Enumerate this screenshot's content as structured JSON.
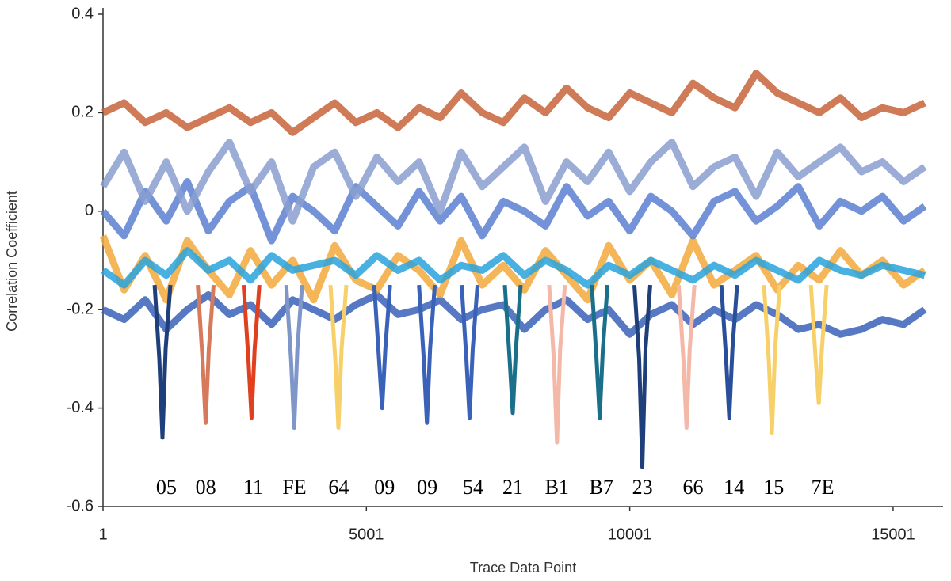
{
  "chart_data": {
    "type": "line",
    "x_label": "Trace Data Point",
    "y_label": "Correlation Coefficient",
    "xlim": [
      1,
      15950
    ],
    "xticks": [
      1,
      5001,
      10001,
      15001
    ],
    "ylim": [
      -0.6,
      0.4
    ],
    "yticks": [
      0.4,
      0.2,
      0,
      -0.2,
      -0.4,
      -0.6
    ],
    "grid": false,
    "x": [
      1,
      401,
      801,
      1201,
      1601,
      2001,
      2401,
      2801,
      3201,
      3601,
      4001,
      4401,
      4801,
      5201,
      5601,
      6001,
      6401,
      6801,
      7201,
      7601,
      8001,
      8401,
      8801,
      9201,
      9601,
      10001,
      10401,
      10801,
      11201,
      11601,
      12001,
      12401,
      12801,
      13201,
      13601,
      14001,
      14401,
      14801,
      15201,
      15601
    ],
    "series": [
      {
        "color": "#c8643a",
        "values": [
          0.2,
          0.22,
          0.18,
          0.2,
          0.17,
          0.19,
          0.21,
          0.18,
          0.2,
          0.16,
          0.19,
          0.22,
          0.18,
          0.2,
          0.17,
          0.21,
          0.19,
          0.24,
          0.2,
          0.18,
          0.23,
          0.2,
          0.25,
          0.21,
          0.19,
          0.24,
          0.22,
          0.2,
          0.26,
          0.23,
          0.21,
          0.28,
          0.24,
          0.22,
          0.2,
          0.23,
          0.19,
          0.21,
          0.2,
          0.22
        ]
      },
      {
        "color": "#3a62b8",
        "values": [
          -0.2,
          -0.22,
          -0.18,
          -0.24,
          -0.2,
          -0.17,
          -0.21,
          -0.19,
          -0.23,
          -0.18,
          -0.2,
          -0.22,
          -0.19,
          -0.17,
          -0.21,
          -0.2,
          -0.18,
          -0.22,
          -0.2,
          -0.19,
          -0.24,
          -0.2,
          -0.18,
          -0.22,
          -0.2,
          -0.25,
          -0.21,
          -0.19,
          -0.23,
          -0.2,
          -0.22,
          -0.19,
          -0.21,
          -0.24,
          -0.23,
          -0.25,
          -0.24,
          -0.22,
          -0.23,
          -0.2
        ]
      },
      {
        "color": "#f2a93b",
        "values": [
          -0.05,
          -0.16,
          -0.09,
          -0.18,
          -0.06,
          -0.12,
          -0.17,
          -0.08,
          -0.15,
          -0.1,
          -0.18,
          -0.07,
          -0.14,
          -0.16,
          -0.09,
          -0.12,
          -0.17,
          -0.06,
          -0.15,
          -0.11,
          -0.16,
          -0.08,
          -0.13,
          -0.18,
          -0.07,
          -0.14,
          -0.1,
          -0.17,
          -0.06,
          -0.15,
          -0.12,
          -0.09,
          -0.16,
          -0.11,
          -0.14,
          -0.08,
          -0.13,
          -0.1,
          -0.15,
          -0.12
        ]
      },
      {
        "color": "#29a3dc",
        "values": [
          -0.12,
          -0.15,
          -0.1,
          -0.13,
          -0.08,
          -0.12,
          -0.1,
          -0.14,
          -0.09,
          -0.12,
          -0.11,
          -0.1,
          -0.13,
          -0.09,
          -0.12,
          -0.1,
          -0.14,
          -0.11,
          -0.12,
          -0.09,
          -0.13,
          -0.1,
          -0.12,
          -0.15,
          -0.11,
          -0.13,
          -0.1,
          -0.12,
          -0.14,
          -0.11,
          -0.13,
          -0.1,
          -0.12,
          -0.14,
          -0.1,
          -0.12,
          -0.13,
          -0.11,
          -0.12,
          -0.13
        ]
      },
      {
        "color": "#5b7fd0",
        "values": [
          0.0,
          -0.05,
          0.04,
          -0.02,
          0.06,
          -0.04,
          0.02,
          0.05,
          -0.06,
          0.03,
          0.0,
          -0.04,
          0.05,
          0.01,
          -0.03,
          0.04,
          -0.02,
          0.03,
          -0.05,
          0.02,
          0.0,
          -0.03,
          0.05,
          -0.01,
          0.02,
          -0.04,
          0.03,
          0.0,
          -0.05,
          0.02,
          0.04,
          -0.02,
          0.01,
          0.05,
          -0.03,
          0.02,
          0.0,
          0.03,
          -0.02,
          0.01
        ]
      },
      {
        "color": "#8a9fd0",
        "values": [
          0.05,
          0.12,
          0.02,
          0.1,
          0.0,
          0.08,
          0.14,
          0.04,
          0.1,
          -0.02,
          0.09,
          0.12,
          0.03,
          0.11,
          0.06,
          0.1,
          0.0,
          0.12,
          0.05,
          0.09,
          0.13,
          0.02,
          0.1,
          0.06,
          0.12,
          0.04,
          0.1,
          0.14,
          0.05,
          0.09,
          0.11,
          0.03,
          0.12,
          0.07,
          0.1,
          0.13,
          0.08,
          0.1,
          0.06,
          0.09
        ]
      }
    ],
    "spikes": [
      {
        "color": "#1f3f7a",
        "x": [
          980,
          1070,
          1130,
          1190,
          1280
        ],
        "values": [
          -0.15,
          -0.3,
          -0.46,
          -0.28,
          -0.15
        ]
      },
      {
        "color": "#d77a5c",
        "x": [
          1800,
          1890,
          1950,
          2010,
          2100
        ],
        "values": [
          -0.15,
          -0.3,
          -0.43,
          -0.28,
          -0.15
        ]
      },
      {
        "color": "#e0401e",
        "x": [
          2670,
          2760,
          2820,
          2880,
          2970
        ],
        "values": [
          -0.15,
          -0.3,
          -0.42,
          -0.28,
          -0.15
        ]
      },
      {
        "color": "#7f96c8",
        "x": [
          3480,
          3570,
          3630,
          3690,
          3780
        ],
        "values": [
          -0.15,
          -0.3,
          -0.44,
          -0.28,
          -0.15
        ]
      },
      {
        "color": "#f7d06a",
        "x": [
          4320,
          4410,
          4470,
          4530,
          4620
        ],
        "values": [
          -0.15,
          -0.3,
          -0.44,
          -0.28,
          -0.15
        ]
      },
      {
        "color": "#3a62b8",
        "x": [
          5150,
          5240,
          5300,
          5360,
          5450
        ],
        "values": [
          -0.15,
          -0.3,
          -0.4,
          -0.28,
          -0.15
        ]
      },
      {
        "color": "#3a62b8",
        "x": [
          6000,
          6090,
          6150,
          6210,
          6300
        ],
        "values": [
          -0.15,
          -0.3,
          -0.43,
          -0.28,
          -0.15
        ]
      },
      {
        "color": "#3a62b8",
        "x": [
          6810,
          6900,
          6960,
          7020,
          7110
        ],
        "values": [
          -0.15,
          -0.3,
          -0.42,
          -0.28,
          -0.15
        ]
      },
      {
        "color": "#1a6f8a",
        "x": [
          7630,
          7720,
          7780,
          7840,
          7930
        ],
        "values": [
          -0.15,
          -0.3,
          -0.41,
          -0.28,
          -0.15
        ]
      },
      {
        "color": "#f4b8a8",
        "x": [
          8470,
          8560,
          8620,
          8680,
          8770
        ],
        "values": [
          -0.15,
          -0.3,
          -0.47,
          -0.28,
          -0.15
        ]
      },
      {
        "color": "#1a6f8a",
        "x": [
          9280,
          9370,
          9430,
          9490,
          9580
        ],
        "values": [
          -0.15,
          -0.3,
          -0.42,
          -0.28,
          -0.15
        ]
      },
      {
        "color": "#1f3f7a",
        "x": [
          10090,
          10180,
          10240,
          10300,
          10390
        ],
        "values": [
          -0.15,
          -0.3,
          -0.52,
          -0.28,
          -0.15
        ]
      },
      {
        "color": "#f4b8a8",
        "x": [
          10930,
          11020,
          11080,
          11140,
          11230
        ],
        "values": [
          -0.15,
          -0.3,
          -0.44,
          -0.28,
          -0.15
        ]
      },
      {
        "color": "#2a4f9a",
        "x": [
          11740,
          11830,
          11890,
          11950,
          12040
        ],
        "values": [
          -0.15,
          -0.3,
          -0.42,
          -0.28,
          -0.15
        ]
      },
      {
        "color": "#f7d06a",
        "x": [
          12550,
          12640,
          12700,
          12760,
          12850
        ],
        "values": [
          -0.15,
          -0.3,
          -0.45,
          -0.28,
          -0.15
        ]
      },
      {
        "color": "#f7d06a",
        "x": [
          13440,
          13530,
          13590,
          13650,
          13740
        ],
        "values": [
          -0.15,
          -0.3,
          -0.39,
          -0.28,
          -0.15
        ]
      }
    ],
    "annotations": [
      {
        "text": "05",
        "x": 1202
      },
      {
        "text": "08",
        "x": 1952
      },
      {
        "text": "11",
        "x": 2853
      },
      {
        "text": "FE",
        "x": 3634
      },
      {
        "text": "64",
        "x": 4475
      },
      {
        "text": "09",
        "x": 5346
      },
      {
        "text": "09",
        "x": 6157
      },
      {
        "text": "54",
        "x": 7028
      },
      {
        "text": "21",
        "x": 7779
      },
      {
        "text": "B1",
        "x": 8619
      },
      {
        "text": "B7",
        "x": 9460
      },
      {
        "text": "23",
        "x": 10241
      },
      {
        "text": "66",
        "x": 11202
      },
      {
        "text": "14",
        "x": 11982
      },
      {
        "text": "15",
        "x": 12733
      },
      {
        "text": "7E",
        "x": 13664
      }
    ]
  }
}
